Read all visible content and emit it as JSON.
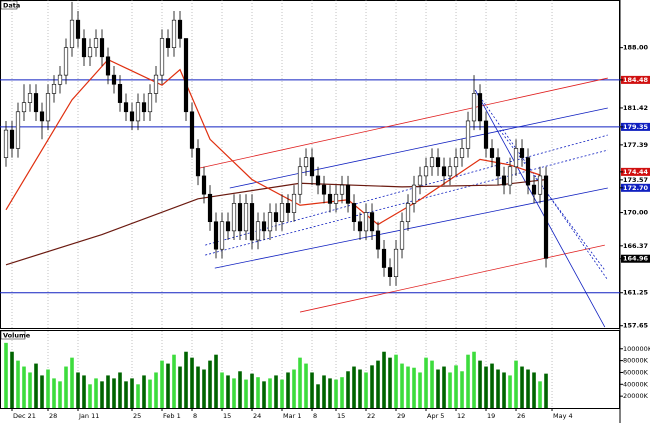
{
  "chart_data": {
    "type": "candlestick",
    "title": "Data",
    "volume_title": "Volume",
    "xlim": [
      -1,
      102.33
    ],
    "ylim": [
      157.4,
      193.2
    ],
    "candle_up_color": "#ffffff",
    "candle_down_color": "#000000",
    "price_labels": [
      {
        "value": 188,
        "label": "188.00"
      },
      {
        "value": 184.48,
        "label": "184.48",
        "bg": "#d01010"
      },
      {
        "value": 181.42,
        "label": "181.42"
      },
      {
        "value": 179.35,
        "label": "179.35",
        "bg": "#1020c0"
      },
      {
        "value": 177.39,
        "label": "177.39"
      },
      {
        "value": 174.44,
        "label": "174.44",
        "bg": "#d01010"
      },
      {
        "value": 173.57,
        "label": "173.57"
      },
      {
        "value": 172.7,
        "label": "172.70",
        "bg": "#1020c0"
      },
      {
        "value": 170,
        "label": "170.00"
      },
      {
        "value": 166.37,
        "label": "166.37"
      },
      {
        "value": 164.96,
        "label": "164.96",
        "bg": "#000000"
      },
      {
        "value": 161.25,
        "label": "161.25"
      },
      {
        "value": 157.65,
        "label": "157.65"
      }
    ],
    "date_ticks": [
      {
        "value": 1,
        "label": "Dec 21"
      },
      {
        "value": 7,
        "label": "28"
      },
      {
        "value": 12,
        "label": "Jan 11"
      },
      {
        "value": 21,
        "label": "25"
      },
      {
        "value": 26,
        "label": "Feb 1"
      },
      {
        "value": 31,
        "label": "8"
      },
      {
        "value": 36,
        "label": "15"
      },
      {
        "value": 41,
        "label": "24"
      },
      {
        "value": 46,
        "label": "Mar 1"
      },
      {
        "value": 51,
        "label": "8"
      },
      {
        "value": 55,
        "label": "15"
      },
      {
        "value": 60,
        "label": "22"
      },
      {
        "value": 65,
        "label": "29"
      },
      {
        "value": 70,
        "label": "Apr 5"
      },
      {
        "value": 75,
        "label": "12"
      },
      {
        "value": 80,
        "label": "19"
      },
      {
        "value": 85,
        "label": "26"
      },
      {
        "value": 91,
        "label": "May 4"
      }
    ],
    "ohlc": [
      [
        176,
        180,
        175,
        179
      ],
      [
        179,
        180,
        176,
        177
      ],
      [
        177,
        182,
        176,
        181
      ],
      [
        181,
        184,
        180,
        182
      ],
      [
        182,
        184,
        181,
        183
      ],
      [
        183,
        184,
        180,
        181
      ],
      [
        181,
        182,
        178,
        180
      ],
      [
        180,
        184,
        179,
        183
      ],
      [
        183,
        185,
        182,
        184
      ],
      [
        184,
        186,
        183,
        185
      ],
      [
        185,
        189,
        184,
        188
      ],
      [
        188,
        193,
        187,
        191
      ],
      [
        191,
        192,
        188,
        189
      ],
      [
        189,
        190,
        186,
        187
      ],
      [
        187,
        189,
        186,
        188
      ],
      [
        188,
        190,
        187,
        189
      ],
      [
        189,
        190,
        186,
        187
      ],
      [
        187,
        188,
        184,
        185
      ],
      [
        185,
        186,
        183,
        184
      ],
      [
        184,
        185,
        181,
        182
      ],
      [
        182,
        183,
        180,
        181
      ],
      [
        181,
        182,
        179,
        180
      ],
      [
        180,
        183,
        179,
        182
      ],
      [
        182,
        183,
        180,
        181
      ],
      [
        181,
        184,
        180,
        183
      ],
      [
        183,
        186,
        182,
        185
      ],
      [
        185,
        190,
        184,
        189
      ],
      [
        189,
        190,
        187,
        188
      ],
      [
        188,
        192,
        187,
        191
      ],
      [
        191,
        192,
        188,
        189
      ],
      [
        189,
        189,
        180,
        181
      ],
      [
        181,
        182,
        176,
        177
      ],
      [
        177,
        178,
        173,
        174
      ],
      [
        174,
        175,
        171,
        172
      ],
      [
        172,
        173,
        168,
        169
      ],
      [
        169,
        170,
        165,
        166
      ],
      [
        166,
        170,
        165,
        169
      ],
      [
        169,
        170,
        167,
        168
      ],
      [
        168,
        172,
        167,
        171
      ],
      [
        171,
        172,
        167,
        168
      ],
      [
        168,
        172,
        167,
        171
      ],
      [
        171,
        172,
        166,
        167
      ],
      [
        167,
        170,
        166,
        169
      ],
      [
        169,
        170,
        167,
        168
      ],
      [
        168,
        171,
        167,
        170
      ],
      [
        170,
        171,
        168,
        169
      ],
      [
        169,
        172,
        168,
        171
      ],
      [
        171,
        172,
        169,
        170
      ],
      [
        170,
        173,
        169,
        172
      ],
      [
        172,
        176,
        171,
        175
      ],
      [
        175,
        177,
        174,
        176
      ],
      [
        176,
        177,
        173,
        174
      ],
      [
        174,
        175,
        172,
        173
      ],
      [
        173,
        174,
        171,
        172
      ],
      [
        172,
        173,
        170,
        171
      ],
      [
        171,
        173,
        170,
        172
      ],
      [
        172,
        174,
        171,
        173
      ],
      [
        173,
        174,
        170,
        171
      ],
      [
        171,
        172,
        168,
        169
      ],
      [
        169,
        170,
        167,
        168
      ],
      [
        168,
        171,
        167,
        170
      ],
      [
        170,
        171,
        167,
        168
      ],
      [
        168,
        169,
        165,
        166
      ],
      [
        166,
        167,
        163,
        164
      ],
      [
        164,
        165,
        162,
        163
      ],
      [
        163,
        167,
        162,
        166
      ],
      [
        166,
        170,
        165,
        169
      ],
      [
        169,
        172,
        168,
        171
      ],
      [
        171,
        174,
        170,
        173
      ],
      [
        173,
        175,
        172,
        174
      ],
      [
        174,
        176,
        173,
        175
      ],
      [
        175,
        177,
        174,
        176
      ],
      [
        176,
        177,
        174,
        175
      ],
      [
        175,
        176,
        173,
        174
      ],
      [
        174,
        176,
        173,
        175
      ],
      [
        175,
        177,
        174,
        176
      ],
      [
        176,
        178,
        175,
        177
      ],
      [
        177,
        181,
        176,
        180
      ],
      [
        180,
        185,
        179,
        183
      ],
      [
        183,
        184,
        179,
        180
      ],
      [
        180,
        181,
        176,
        177
      ],
      [
        177,
        178,
        175,
        176
      ],
      [
        176,
        177,
        173,
        174
      ],
      [
        174,
        175,
        172,
        173
      ],
      [
        173,
        176,
        172,
        175
      ],
      [
        175,
        178,
        174,
        177
      ],
      [
        177,
        178,
        175,
        176
      ],
      [
        176,
        177,
        172,
        173
      ],
      [
        173,
        174,
        171,
        172
      ],
      [
        172,
        175,
        171,
        174
      ],
      [
        174,
        175,
        164,
        165
      ]
    ],
    "volume": {
      "ylim": [
        0,
        130000
      ],
      "up_color": "#3ddc3d",
      "down_color": "#006400",
      "yticks": [
        {
          "value": 20000,
          "label": "20000K"
        },
        {
          "value": 40000,
          "label": "40000K"
        },
        {
          "value": 60000,
          "label": "60000K"
        },
        {
          "value": 80000,
          "label": "80000K"
        },
        {
          "value": 100000,
          "label": "100000K"
        }
      ],
      "values": [
        110000,
        95000,
        80000,
        70000,
        60000,
        75000,
        55000,
        65000,
        50000,
        45000,
        70000,
        85000,
        60000,
        55000,
        40000,
        50000,
        45000,
        55000,
        50000,
        60000,
        45000,
        50000,
        40000,
        55000,
        48000,
        60000,
        80000,
        75000,
        90000,
        70000,
        95000,
        85000,
        70000,
        65000,
        80000,
        90000,
        60000,
        55000,
        50000,
        62000,
        48000,
        58000,
        52000,
        45000,
        50000,
        55000,
        48000,
        60000,
        65000,
        85000,
        75000,
        60000,
        40000,
        55000,
        50000,
        48000,
        52000,
        62000,
        70000,
        65000,
        60000,
        72000,
        80000,
        95000,
        85000,
        90000,
        75000,
        70000,
        68000,
        60000,
        85000,
        80000,
        65000,
        70000,
        60000,
        72000,
        62000,
        90000,
        95000,
        80000,
        70000,
        75000,
        65000,
        60000,
        55000,
        80000,
        70000,
        65000,
        60000,
        45000,
        58000
      ]
    },
    "overlays": [
      {
        "color": "#6b1a10",
        "x": [
          0,
          16,
          32,
          49,
          66,
          82,
          90
        ],
        "values": [
          164.3,
          167.6,
          171.5,
          173.2,
          172.8,
          173.0,
          173.6
        ]
      },
      {
        "color": "#e03010",
        "x": [
          0,
          11,
          17,
          26,
          29,
          34,
          41,
          49,
          57,
          62,
          69,
          74,
          79,
          84,
          89
        ],
        "values": [
          170.3,
          182.3,
          186.7,
          183.9,
          185.6,
          178.0,
          173.6,
          170.8,
          171.4,
          168.7,
          171.4,
          173.6,
          175.8,
          175.2,
          174.1
        ]
      }
    ],
    "levels": {
      "color": "#1020c0",
      "values": [
        184.48,
        179.35,
        161.25
      ]
    },
    "trend_lines": [
      {
        "color": "#e02020",
        "x": [
          32.3,
          100.3
        ],
        "y": [
          174.86,
          184.68
        ]
      },
      {
        "color": "#e02020",
        "x": [
          49,
          99.8
        ],
        "y": [
          159.14,
          166.45
        ]
      },
      {
        "color": "#1020c0",
        "x": [
          37.3,
          100.3
        ],
        "y": [
          172.68,
          181.41
        ]
      },
      {
        "color": "#1020c0",
        "x": [
          34.8,
          100.3
        ],
        "y": [
          163.94,
          172.68
        ]
      },
      {
        "color": "#1020c0",
        "dashed": true,
        "x": [
          33.2,
          100.3
        ],
        "y": [
          166.45,
          178.46
        ]
      },
      {
        "color": "#1020c0",
        "dashed": true,
        "x": [
          33.2,
          100.3
        ],
        "y": [
          165.36,
          176.82
        ]
      },
      {
        "color": "#1020c0",
        "x": [
          78.2,
          99.8
        ],
        "y": [
          183.37,
          157.5
        ]
      },
      {
        "color": "#1020c0",
        "dashed": true,
        "x": [
          78.2,
          100.3
        ],
        "y": [
          183.37,
          162.63
        ]
      },
      {
        "color": "#1020c0",
        "dashed": true,
        "x": [
          82.3,
          99.8
        ],
        "y": [
          179.0,
          163.72
        ]
      }
    ]
  }
}
